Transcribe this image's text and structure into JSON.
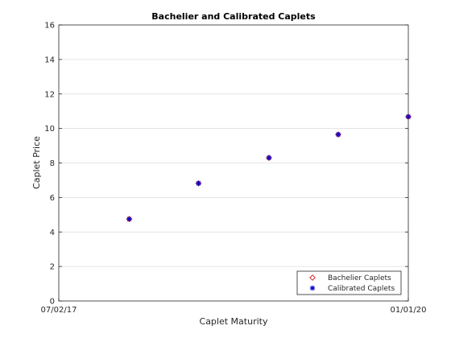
{
  "chart_data": {
    "type": "scatter",
    "title": "Bachelier and Calibrated Caplets",
    "xlabel": "Caplet Maturity",
    "ylabel": "Caplet Price",
    "x_tick_labels": [
      "07/02/17",
      "01/01/20"
    ],
    "x_range": [
      "07/02/17",
      "01/01/20"
    ],
    "ylim": [
      0,
      16
    ],
    "y_ticks": [
      0,
      2,
      4,
      6,
      8,
      10,
      12,
      14,
      16
    ],
    "grid": "horizontal",
    "legend_position": "bottom-right",
    "x": [
      "01/02/18",
      "07/02/18",
      "01/02/19",
      "07/02/19",
      "01/01/20"
    ],
    "series": [
      {
        "name": "Bachelier Caplets",
        "marker": "diamond",
        "color": "#d62728",
        "values": [
          4.75,
          6.82,
          8.3,
          9.65,
          10.68
        ]
      },
      {
        "name": "Calibrated Caplets",
        "marker": "asterisk",
        "color": "#0000cc",
        "values": [
          4.75,
          6.82,
          8.3,
          9.65,
          10.68
        ]
      }
    ]
  }
}
